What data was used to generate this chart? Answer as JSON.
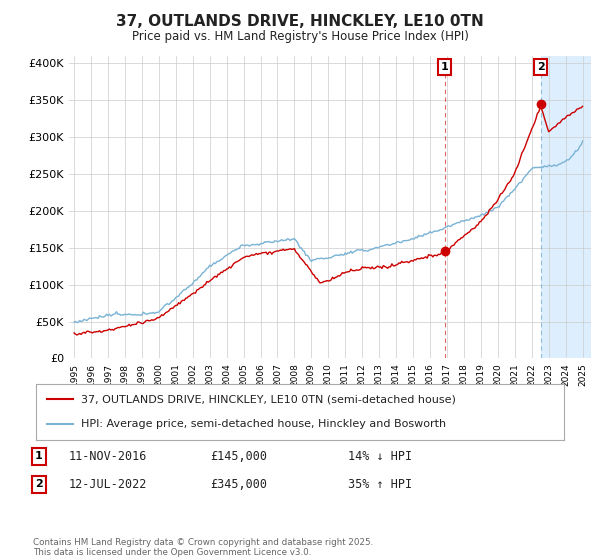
{
  "title": "37, OUTLANDS DRIVE, HINCKLEY, LE10 0TN",
  "subtitle": "Price paid vs. HM Land Registry's House Price Index (HPI)",
  "hpi_color": "#7ab3d4",
  "price_color": "#cc0000",
  "background_color": "#ffffff",
  "grid_color": "#cccccc",
  "highlight_color": "#ddeeff",
  "ylim": [
    0,
    410000
  ],
  "yticks": [
    0,
    50000,
    100000,
    150000,
    200000,
    250000,
    300000,
    350000,
    400000
  ],
  "ytick_labels": [
    "£0",
    "£50K",
    "£100K",
    "£150K",
    "£200K",
    "£250K",
    "£300K",
    "£350K",
    "£400K"
  ],
  "transaction1": {
    "date": "11-NOV-2016",
    "price": 145000,
    "label": "14% ↓ HPI",
    "marker_num": "1"
  },
  "transaction2": {
    "date": "12-JUL-2022",
    "price": 345000,
    "label": "35% ↑ HPI",
    "marker_num": "2"
  },
  "legend_line1": "37, OUTLANDS DRIVE, HINCKLEY, LE10 0TN (semi-detached house)",
  "legend_line2": "HPI: Average price, semi-detached house, Hinckley and Bosworth",
  "footer": "Contains HM Land Registry data © Crown copyright and database right 2025.\nThis data is licensed under the Open Government Licence v3.0.",
  "transaction1_year": 2016.87,
  "transaction2_year": 2022.54
}
